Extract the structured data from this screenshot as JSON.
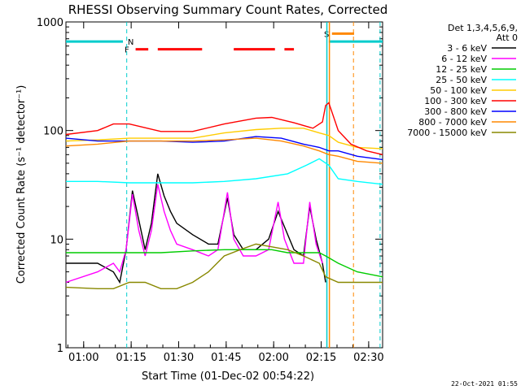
{
  "chart_data": {
    "type": "line",
    "title": "RHESSI Observing Summary Count Rates, Corrected",
    "xlabel": "Start Time (01-Dec-02 00:54:22)",
    "ylabel": "Corrected Count Rate (s⁻¹ detector⁻¹)",
    "yscale": "log",
    "ylim": [
      1,
      1000
    ],
    "xlim_minutes_from_start": [
      0,
      100
    ],
    "x_ticks": [
      {
        "label": "01:00",
        "t": 5.6
      },
      {
        "label": "01:15",
        "t": 20.6
      },
      {
        "label": "01:30",
        "t": 35.6
      },
      {
        "label": "01:45",
        "t": 50.6
      },
      {
        "label": "02:00",
        "t": 65.6
      },
      {
        "label": "02:15",
        "t": 80.6
      },
      {
        "label": "02:30",
        "t": 95.6
      }
    ],
    "y_ticks": [
      {
        "label": "1",
        "v": 1
      },
      {
        "label": "10",
        "v": 10
      },
      {
        "label": "100",
        "v": 100
      },
      {
        "label": "1000",
        "v": 1000
      }
    ],
    "legend_header": [
      "Det 1,3,4,5,6,9,",
      "Att 0"
    ],
    "legend_placement": "right",
    "footer": "22-Oct-2021 01:55",
    "flags": [
      {
        "label": "N",
        "color": "#00cccc"
      },
      {
        "label": "F",
        "color": "#ff0000"
      },
      {
        "label": "S",
        "color": "#ff8800"
      }
    ],
    "series": [
      {
        "name": "3 - 6 keV",
        "color": "#000000",
        "points": [
          [
            0,
            6
          ],
          [
            10,
            6
          ],
          [
            15,
            5
          ],
          [
            17,
            4
          ],
          [
            19,
            8
          ],
          [
            21,
            28
          ],
          [
            23,
            15
          ],
          [
            25,
            8
          ],
          [
            27,
            14
          ],
          [
            29,
            40
          ],
          [
            31,
            25
          ],
          [
            33,
            18
          ],
          [
            35,
            14
          ],
          [
            40,
            11
          ],
          [
            45,
            9
          ],
          [
            48,
            9
          ],
          [
            51,
            24
          ],
          [
            53,
            11
          ],
          [
            56,
            8
          ],
          [
            60,
            8
          ],
          [
            64,
            10
          ],
          [
            67,
            18
          ],
          [
            69,
            13
          ],
          [
            72,
            8
          ],
          [
            75,
            7
          ],
          [
            77,
            20
          ],
          [
            79,
            10
          ],
          [
            81,
            6
          ],
          [
            82,
            4
          ]
        ]
      },
      {
        "name": "6 - 12 keV",
        "color": "#ff00ff",
        "points": [
          [
            0,
            4
          ],
          [
            10,
            5
          ],
          [
            15,
            6
          ],
          [
            17,
            5
          ],
          [
            19,
            8
          ],
          [
            21,
            26
          ],
          [
            23,
            12
          ],
          [
            25,
            7
          ],
          [
            27,
            12
          ],
          [
            29,
            32
          ],
          [
            31,
            18
          ],
          [
            33,
            12
          ],
          [
            35,
            9
          ],
          [
            40,
            8
          ],
          [
            45,
            7
          ],
          [
            48,
            8
          ],
          [
            51,
            27
          ],
          [
            53,
            10
          ],
          [
            56,
            7
          ],
          [
            60,
            7
          ],
          [
            64,
            8
          ],
          [
            67,
            22
          ],
          [
            69,
            10
          ],
          [
            72,
            6
          ],
          [
            75,
            6
          ],
          [
            77,
            22
          ],
          [
            79,
            9
          ],
          [
            81,
            6
          ]
        ]
      },
      {
        "name": "12 - 25 keV",
        "color": "#00cc00",
        "points": [
          [
            0,
            7.5
          ],
          [
            10,
            7.5
          ],
          [
            20,
            7.5
          ],
          [
            30,
            7.5
          ],
          [
            40,
            7.8
          ],
          [
            50,
            8
          ],
          [
            60,
            8
          ],
          [
            65,
            8
          ],
          [
            70,
            7.5
          ],
          [
            75,
            7.5
          ],
          [
            80,
            7.5
          ],
          [
            82,
            7
          ],
          [
            86,
            6
          ],
          [
            92,
            5
          ],
          [
            100,
            4.5
          ]
        ]
      },
      {
        "name": "25 - 50 keV",
        "color": "#00ffff",
        "points": [
          [
            0,
            34
          ],
          [
            10,
            34
          ],
          [
            20,
            33
          ],
          [
            30,
            33
          ],
          [
            40,
            33
          ],
          [
            50,
            34
          ],
          [
            60,
            36
          ],
          [
            70,
            40
          ],
          [
            76,
            48
          ],
          [
            80,
            55
          ],
          [
            83,
            48
          ],
          [
            86,
            36
          ],
          [
            92,
            34
          ],
          [
            100,
            32
          ]
        ]
      },
      {
        "name": "50 - 100 keV",
        "color": "#ffcc00",
        "points": [
          [
            0,
            80
          ],
          [
            10,
            82
          ],
          [
            20,
            85
          ],
          [
            30,
            85
          ],
          [
            40,
            85
          ],
          [
            50,
            95
          ],
          [
            60,
            102
          ],
          [
            68,
            105
          ],
          [
            75,
            105
          ],
          [
            80,
            95
          ],
          [
            83,
            90
          ],
          [
            86,
            78
          ],
          [
            92,
            70
          ],
          [
            100,
            68
          ]
        ]
      },
      {
        "name": "100 - 300 keV",
        "color": "#ff0000",
        "points": [
          [
            0,
            92
          ],
          [
            10,
            100
          ],
          [
            15,
            115
          ],
          [
            20,
            115
          ],
          [
            30,
            98
          ],
          [
            40,
            98
          ],
          [
            50,
            115
          ],
          [
            60,
            130
          ],
          [
            65,
            132
          ],
          [
            72,
            118
          ],
          [
            78,
            105
          ],
          [
            81,
            120
          ],
          [
            82,
            170
          ],
          [
            83,
            180
          ],
          [
            86,
            100
          ],
          [
            90,
            75
          ],
          [
            95,
            65
          ],
          [
            100,
            60
          ]
        ]
      },
      {
        "name": "300 - 800 keV",
        "color": "#0000ff",
        "points": [
          [
            0,
            85
          ],
          [
            10,
            80
          ],
          [
            20,
            80
          ],
          [
            30,
            80
          ],
          [
            40,
            78
          ],
          [
            50,
            80
          ],
          [
            60,
            88
          ],
          [
            68,
            85
          ],
          [
            75,
            75
          ],
          [
            80,
            70
          ],
          [
            83,
            65
          ],
          [
            86,
            65
          ],
          [
            92,
            58
          ],
          [
            100,
            54
          ]
        ]
      },
      {
        "name": "800 - 7000 keV",
        "color": "#ff8800",
        "points": [
          [
            0,
            72
          ],
          [
            10,
            75
          ],
          [
            20,
            80
          ],
          [
            30,
            80
          ],
          [
            40,
            80
          ],
          [
            50,
            82
          ],
          [
            60,
            85
          ],
          [
            68,
            80
          ],
          [
            75,
            72
          ],
          [
            80,
            65
          ],
          [
            83,
            60
          ],
          [
            86,
            58
          ],
          [
            92,
            52
          ],
          [
            100,
            50
          ]
        ]
      },
      {
        "name": "7000 - 15000 keV",
        "color": "#888800",
        "points": [
          [
            0,
            3.6
          ],
          [
            10,
            3.5
          ],
          [
            15,
            3.5
          ],
          [
            20,
            4
          ],
          [
            25,
            4
          ],
          [
            30,
            3.5
          ],
          [
            35,
            3.5
          ],
          [
            40,
            4
          ],
          [
            45,
            5
          ],
          [
            50,
            7
          ],
          [
            55,
            8
          ],
          [
            60,
            9
          ],
          [
            65,
            8.5
          ],
          [
            70,
            8
          ],
          [
            75,
            7
          ],
          [
            80,
            6
          ],
          [
            82,
            4.5
          ],
          [
            86,
            4
          ],
          [
            92,
            4
          ],
          [
            100,
            4
          ]
        ]
      }
    ]
  }
}
